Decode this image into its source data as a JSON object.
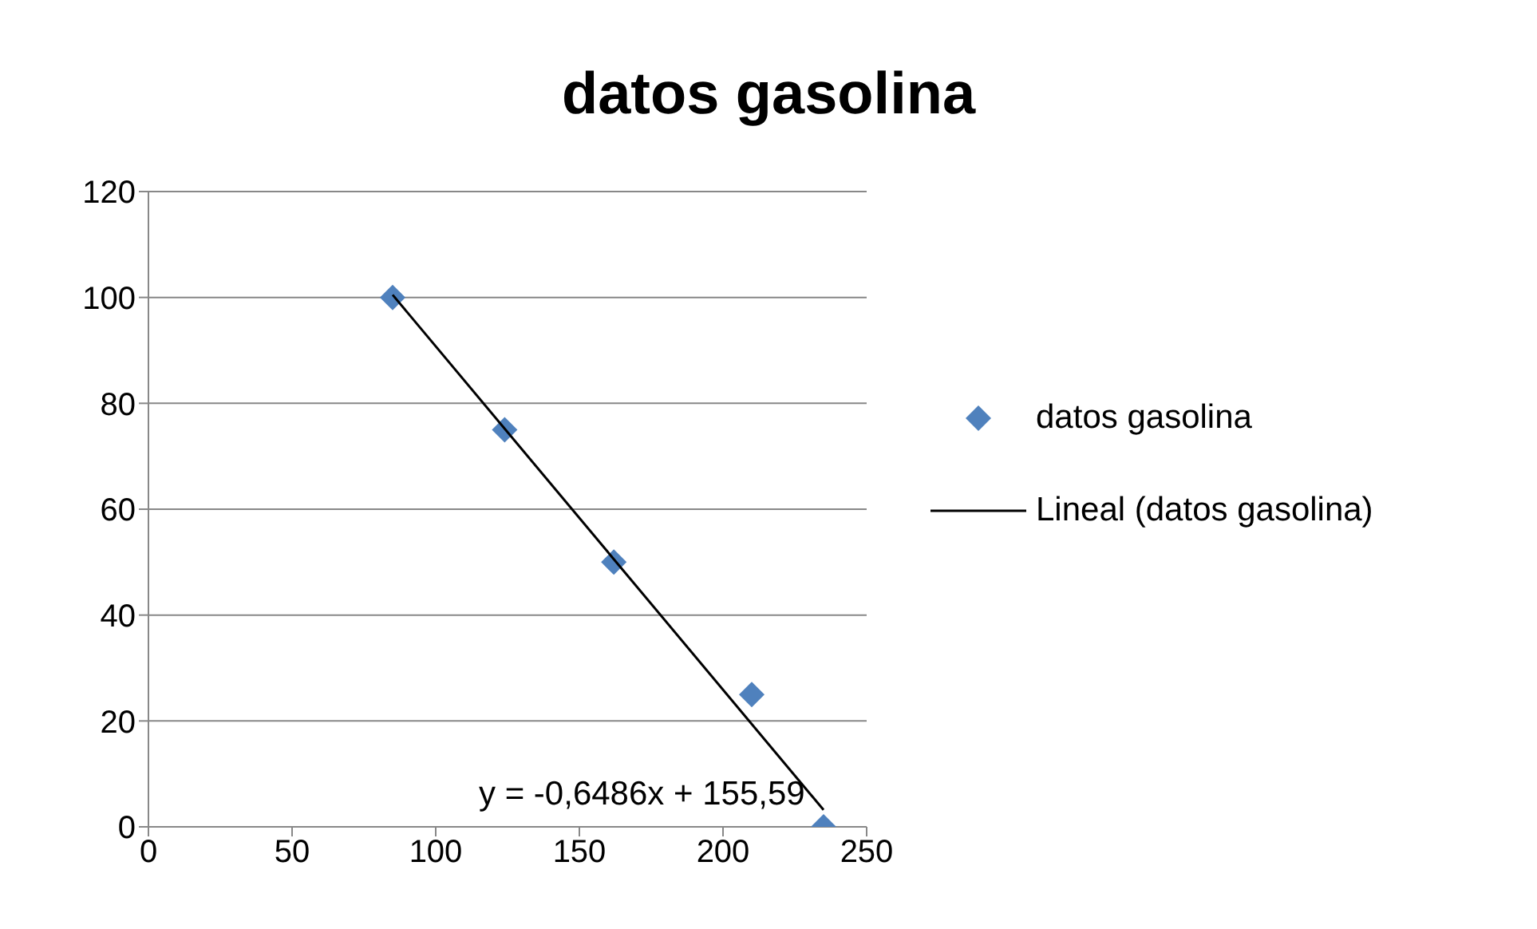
{
  "chart_data": {
    "type": "scatter",
    "title": "datos gasolina",
    "series": [
      {
        "name": "datos gasolina",
        "color": "#4f81bd",
        "marker": "diamond",
        "x": [
          85,
          124,
          162,
          210,
          235
        ],
        "values": [
          100,
          75,
          50,
          25,
          0
        ]
      },
      {
        "name": "Lineal (datos gasolina)",
        "type": "line",
        "color": "#000000",
        "marker": "none",
        "x": [
          85,
          235
        ],
        "values": [
          100.5,
          3.2
        ]
      }
    ],
    "annotations": [
      "y = -0,6486x + 155,59"
    ],
    "xlim": [
      0,
      250
    ],
    "xticks": [
      0,
      50,
      100,
      150,
      200,
      250
    ],
    "ylim": [
      0,
      120
    ],
    "yticks": [
      0,
      20,
      40,
      60,
      80,
      100,
      120
    ],
    "grid": "y",
    "legend": "right"
  }
}
